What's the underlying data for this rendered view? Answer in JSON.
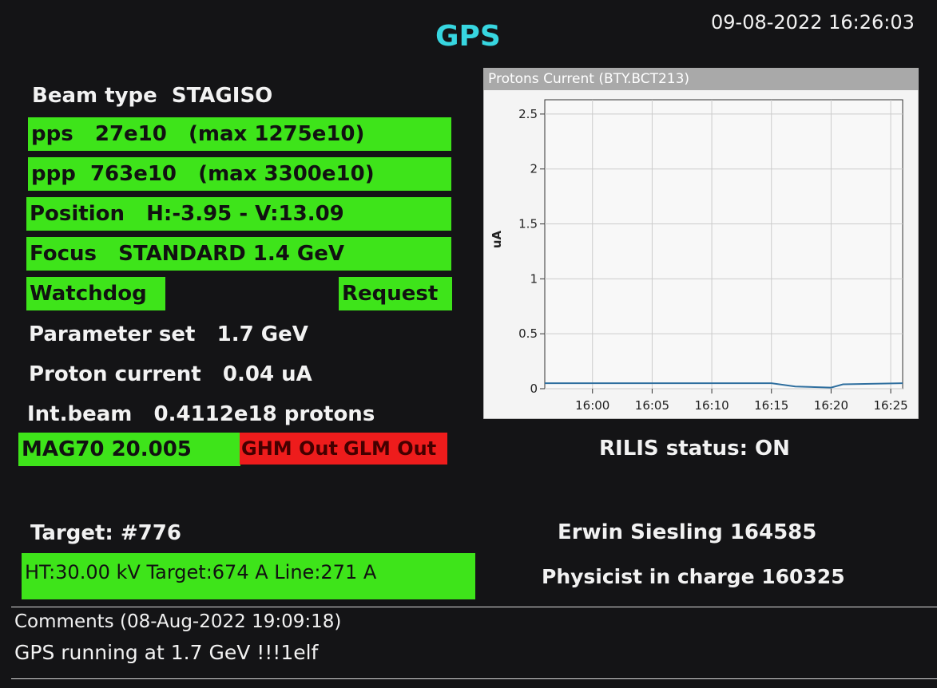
{
  "header": {
    "title": "GPS",
    "datetime": "09-08-2022 16:26:03"
  },
  "left": {
    "beam_type": "Beam type  STAGISO",
    "pps": "pps   27e10   (max 1275e10)",
    "ppp": "ppp  763e10   (max 3300e10)",
    "position": "Position   H:-3.95 - V:13.09",
    "focus": "Focus   STANDARD 1.4 GeV",
    "watchdog": "Watchdog",
    "request": "Request",
    "parameter_set": "Parameter set   1.7 GeV",
    "proton_current": "Proton current   0.04 uA",
    "int_beam": "Int.beam   0.4112e18 protons",
    "mag": "MAG70 20.005",
    "ghm": "GHM Out",
    "glm": "GLM Out",
    "target": "Target: #776",
    "ht": "HT:30.00 kV",
    "target_current": "Target:674 A",
    "line": "Line:271 A"
  },
  "right": {
    "rilis": "RILIS status: ON",
    "operator": "Erwin Siesling 164585",
    "physicist": "Physicist in charge 160325"
  },
  "comments": {
    "header": "Comments (08-Aug-2022 19:09:18)",
    "text": "GPS running at 1.7 GeV !!!1elf"
  },
  "chart_data": {
    "type": "line",
    "title": "Protons Current (BTY.BCT213)",
    "y_label": "uA",
    "x": [
      "15:56",
      "16:05",
      "16:15",
      "16:17",
      "16:20",
      "16:21",
      "16:26"
    ],
    "values": [
      0.05,
      0.05,
      0.05,
      0.02,
      0.01,
      0.04,
      0.05
    ],
    "color": "#2f6f9f",
    "xlim": [
      "15:56",
      "16:26"
    ],
    "xticks": [
      "16:00",
      "16:05",
      "16:10",
      "16:15",
      "16:20",
      "16:25"
    ],
    "ylim": [
      0,
      2.63
    ],
    "yticks": [
      0,
      0.5,
      1,
      1.5,
      2,
      2.5
    ],
    "grid": true
  }
}
